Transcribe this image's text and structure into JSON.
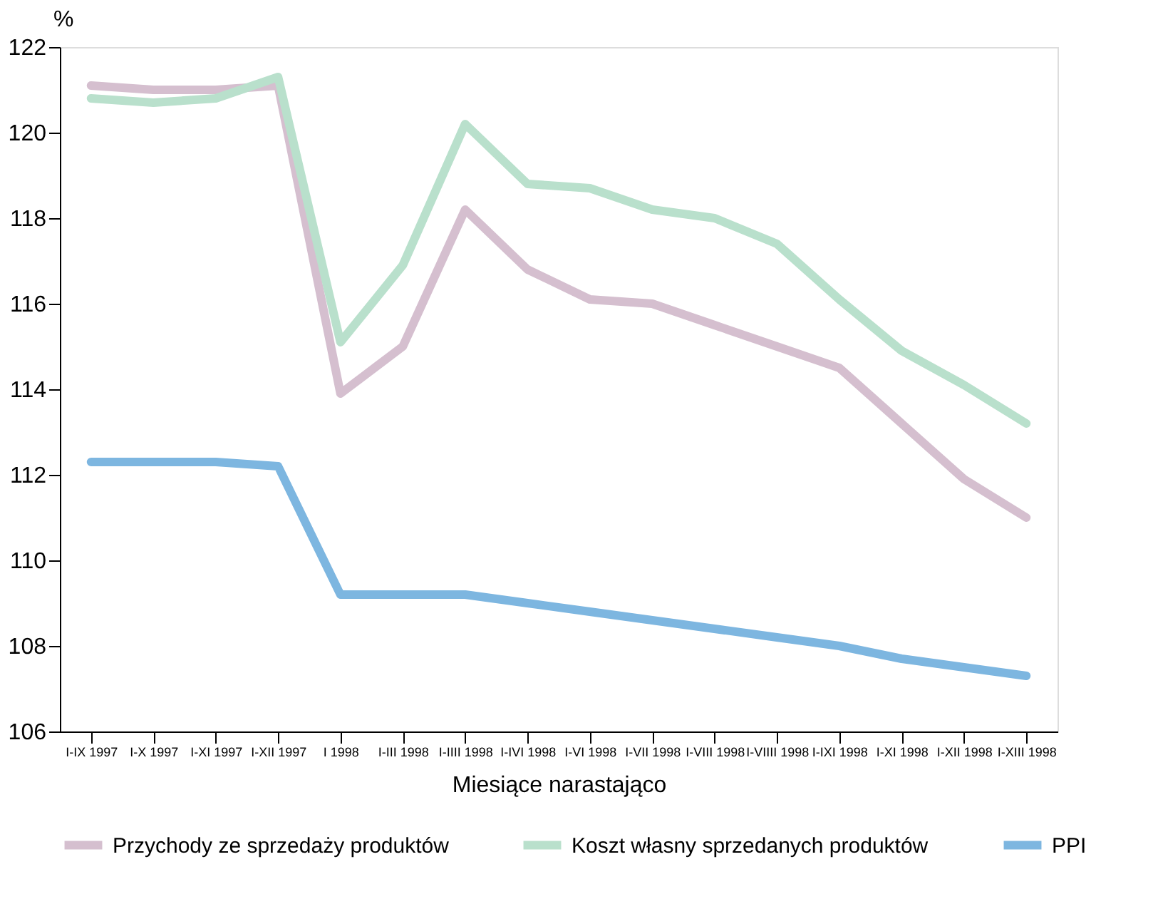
{
  "chart_data": {
    "type": "line",
    "xlabel": "Miesiące narastająco",
    "ylabel": "%",
    "categories": [
      "I-IX 1997",
      "I-X 1997",
      "I-XI 1997",
      "I-XII 1997",
      "I 1998",
      "I-III 1998",
      "I-IIII 1998",
      "I-IVI 1998",
      "I-VI 1998",
      "I-VII 1998",
      "I-VIII 1998",
      "I-VIIII 1998",
      "I-IXI 1998",
      "I-XI 1998",
      "I-XII 1998",
      "I-XIII 1998"
    ],
    "series": [
      {
        "name": "Przychody ze sprzedaży produktów",
        "color": "#d5bfcf",
        "values": [
          121.1,
          121.0,
          121.0,
          121.1,
          113.9,
          115.0,
          118.2,
          116.8,
          116.1,
          116.0,
          115.5,
          115.0,
          114.5,
          113.2,
          111.9,
          111.0
        ]
      },
      {
        "name": "Koszt własny sprzedanych produktów",
        "color": "#b9e0cc",
        "values": [
          120.8,
          120.7,
          120.8,
          121.3,
          115.1,
          116.9,
          120.2,
          118.8,
          118.7,
          118.2,
          118.0,
          117.4,
          116.1,
          114.9,
          114.1,
          113.2
        ]
      },
      {
        "name": "PPI",
        "color": "#7db6e0",
        "values": [
          112.3,
          112.3,
          112.3,
          112.2,
          109.2,
          109.2,
          109.2,
          109.0,
          108.8,
          108.6,
          108.4,
          108.2,
          108.0,
          107.7,
          107.5,
          107.3
        ]
      }
    ],
    "ylim": [
      106,
      122
    ],
    "yticks": [
      106,
      108,
      110,
      112,
      114,
      116,
      118,
      120,
      122
    ],
    "grid": false,
    "legend": "bottom",
    "marker": "none",
    "line_style": "solid"
  }
}
